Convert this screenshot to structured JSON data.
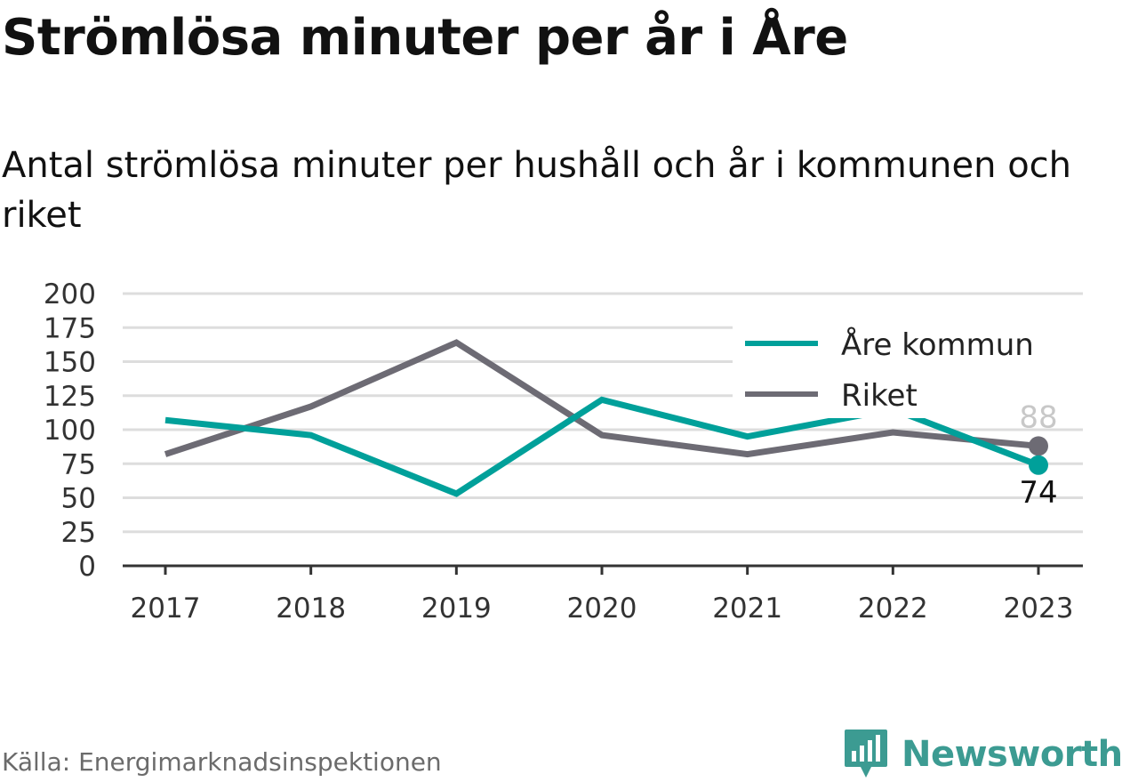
{
  "header": {
    "title": "Strömlösa minuter per år i Åre",
    "subtitle": "Antal strömlösa minuter per hushåll och år i kommunen och riket"
  },
  "footer": {
    "source": "Källa: Energimarknadsinspektionen",
    "brand": "Newsworthy"
  },
  "colors": {
    "are": "#00a09a",
    "are_faded": "#c9ebe8",
    "riket": "#6d6b74",
    "grid": "#dddddd",
    "axis": "#333333",
    "brand": "#3c9b92"
  },
  "chart_data": {
    "type": "line",
    "categories": [
      "2017",
      "2018",
      "2019",
      "2020",
      "2021",
      "2022",
      "2023"
    ],
    "series": [
      {
        "name": "Åre kommun",
        "color": "#00a09a",
        "values": [
          107,
          96,
          53,
          122,
          95,
          115,
          74
        ]
      },
      {
        "name": "Riket",
        "color": "#6d6b74",
        "values": [
          82,
          117,
          164,
          96,
          82,
          98,
          88
        ]
      }
    ],
    "ylim": [
      0,
      200
    ],
    "yticks": [
      "0",
      "25",
      "50",
      "75",
      "100",
      "125",
      "150",
      "175",
      "200"
    ],
    "end_labels": {
      "are": "74",
      "riket": "88"
    },
    "grid": true,
    "legend": "top-right",
    "xlabel": "",
    "ylabel": ""
  }
}
